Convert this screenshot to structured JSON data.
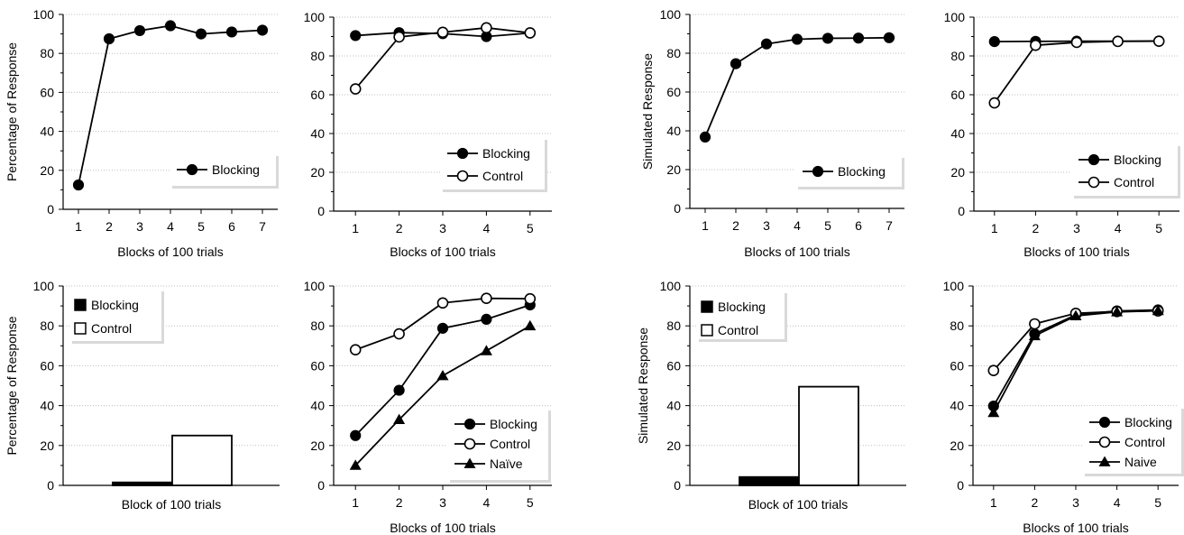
{
  "chart_data": [
    {
      "id": "p1",
      "type": "line",
      "x": [
        "1",
        "2",
        "3",
        "4",
        "5",
        "6",
        "7"
      ],
      "series": [
        {
          "name": "Blocking",
          "marker": "filled-circle",
          "values": [
            12.5,
            87.5,
            91.7,
            94.2,
            90.0,
            91.0,
            91.9
          ]
        }
      ],
      "ylim": [
        0,
        100
      ],
      "yticks": [
        0,
        20,
        40,
        60,
        80,
        100
      ],
      "xlabel": "Blocks of 100 trials",
      "ylabel": "Percentage of Response",
      "legend": "bottom-right",
      "grid": "horizontal dotted"
    },
    {
      "id": "p2",
      "type": "line",
      "x": [
        "1",
        "2",
        "3",
        "4",
        "5"
      ],
      "series": [
        {
          "name": "Blocking",
          "marker": "filled-circle",
          "values": [
            90.5,
            92.0,
            91.5,
            90.0,
            91.8
          ]
        },
        {
          "name": "Control",
          "marker": "open-circle",
          "values": [
            63.0,
            89.8,
            92.2,
            94.5,
            91.9
          ]
        }
      ],
      "ylim": [
        0,
        100
      ],
      "yticks": [
        0,
        20,
        40,
        60,
        80,
        100
      ],
      "xlabel": "Blocks of 100 trials",
      "ylabel": "",
      "legend": "bottom-right",
      "grid": "horizontal dotted"
    },
    {
      "id": "p3",
      "type": "line",
      "x": [
        "1",
        "2",
        "3",
        "4",
        "5",
        "6",
        "7"
      ],
      "series": [
        {
          "name": "Blocking",
          "marker": "filled-circle",
          "values": [
            36.8,
            74.6,
            84.8,
            87.2,
            87.7,
            87.8,
            88.0
          ]
        }
      ],
      "ylim": [
        0,
        100
      ],
      "yticks": [
        0,
        20,
        40,
        60,
        80,
        100
      ],
      "xlabel": "Blocks of 100 trials",
      "ylabel": "Simulated Response",
      "legend": "bottom-right",
      "grid": "horizontal dotted"
    },
    {
      "id": "p4",
      "type": "line",
      "x": [
        "1",
        "2",
        "3",
        "4",
        "5"
      ],
      "series": [
        {
          "name": "Blocking",
          "marker": "filled-circle",
          "values": [
            87.4,
            87.5,
            87.6,
            87.6,
            87.7
          ]
        },
        {
          "name": "Control",
          "marker": "open-circle",
          "values": [
            55.8,
            85.5,
            87.0,
            87.5,
            87.6
          ]
        }
      ],
      "ylim": [
        0,
        100
      ],
      "yticks": [
        0,
        20,
        40,
        60,
        80,
        100
      ],
      "xlabel": "Blocks of 100 trials",
      "ylabel": "",
      "legend": "bottom-right",
      "grid": "horizontal dotted"
    },
    {
      "id": "p5",
      "type": "bar",
      "categories": [
        "Block of 100 trials"
      ],
      "series": [
        {
          "name": "Blocking",
          "fill": "#000000",
          "values": [
            1.5
          ]
        },
        {
          "name": "Control",
          "fill": "#ffffff",
          "values": [
            25.0
          ]
        }
      ],
      "ylim": [
        0,
        100
      ],
      "yticks": [
        0,
        20,
        40,
        60,
        80,
        100
      ],
      "xlabel": "Block of 100 trials",
      "ylabel": "Percentage of Response",
      "legend": "top-left",
      "grid": "horizontal dotted"
    },
    {
      "id": "p6",
      "type": "line",
      "x": [
        "1",
        "2",
        "3",
        "4",
        "5"
      ],
      "series": [
        {
          "name": "Blocking",
          "marker": "filled-circle",
          "values": [
            25.0,
            47.7,
            78.8,
            83.3,
            90.5
          ]
        },
        {
          "name": "Control",
          "marker": "open-circle",
          "values": [
            68.0,
            76.0,
            91.5,
            93.8,
            93.6
          ]
        },
        {
          "name": "Naïve",
          "marker": "filled-triangle",
          "values": [
            10.0,
            33.0,
            55.0,
            67.5,
            80.0
          ]
        }
      ],
      "ylim": [
        0,
        100
      ],
      "yticks": [
        0,
        20,
        40,
        60,
        80,
        100
      ],
      "xlabel": "Blocks of 100 trials",
      "ylabel": "",
      "legend": "bottom-right",
      "grid": "horizontal dotted"
    },
    {
      "id": "p7",
      "type": "bar",
      "categories": [
        "Block of 100 trials"
      ],
      "series": [
        {
          "name": "Blocking",
          "fill": "#000000",
          "values": [
            4.2
          ]
        },
        {
          "name": "Control",
          "fill": "#ffffff",
          "values": [
            49.5
          ]
        }
      ],
      "ylim": [
        0,
        100
      ],
      "yticks": [
        0,
        20,
        40,
        60,
        80,
        100
      ],
      "xlabel": "Block of 100 trials",
      "ylabel": "Simulated Response",
      "legend": "top-left",
      "grid": "horizontal dotted"
    },
    {
      "id": "p8",
      "type": "line",
      "x": [
        "1",
        "2",
        "3",
        "4",
        "5"
      ],
      "series": [
        {
          "name": "Blocking",
          "marker": "filled-circle",
          "values": [
            39.8,
            76.0,
            85.5,
            87.5,
            88.0
          ]
        },
        {
          "name": "Control",
          "marker": "open-circle",
          "values": [
            57.6,
            81.0,
            86.3,
            87.2,
            87.5
          ]
        },
        {
          "name": "Naive",
          "marker": "filled-triangle",
          "values": [
            36.5,
            75.0,
            85.0,
            87.0,
            87.6
          ]
        }
      ],
      "ylim": [
        0,
        100
      ],
      "yticks": [
        0,
        20,
        40,
        60,
        80,
        100
      ],
      "xlabel": "Blocks of 100 trials",
      "ylabel": "",
      "legend": "bottom-right",
      "grid": "horizontal dotted"
    }
  ]
}
